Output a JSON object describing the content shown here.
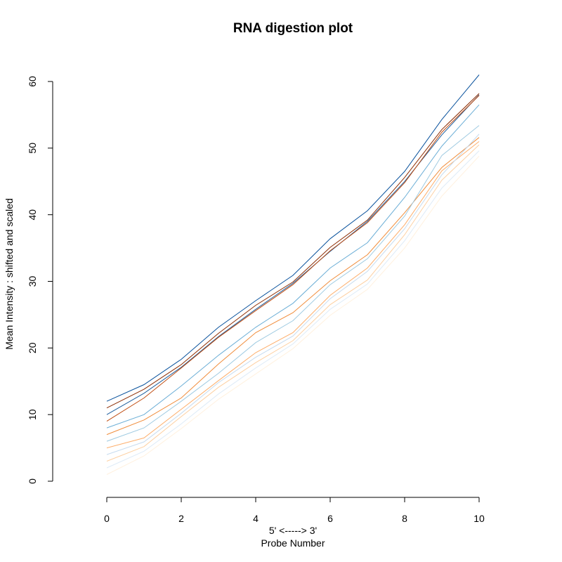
{
  "chart_data": {
    "type": "line",
    "title": "RNA digestion plot",
    "xlabel": "5' <-----> 3'",
    "xlabel2": "Probe Number",
    "ylabel": "Mean Intensity : shifted and scaled",
    "xlim": [
      0,
      10
    ],
    "ylim": [
      0,
      60
    ],
    "x_ticks": [
      0,
      2,
      4,
      6,
      8,
      10
    ],
    "y_ticks": [
      0,
      10,
      20,
      30,
      40,
      50,
      60
    ],
    "grid": false,
    "legend": "none",
    "x": [
      0,
      1,
      2,
      3,
      4,
      5,
      6,
      7,
      8,
      9,
      10
    ],
    "series": [
      {
        "color": "#08519c",
        "values": [
          12,
          14.5,
          18.3,
          23.1,
          27.1,
          30.9,
          36.4,
          40.6,
          46.5,
          54.3,
          61.0
        ]
      },
      {
        "color": "#8c2d04",
        "values": [
          11,
          13.8,
          17.5,
          22.2,
          26.4,
          29.9,
          35.1,
          39.2,
          45.6,
          52.8,
          58.2
        ]
      },
      {
        "color": "#1f5f9e",
        "values": [
          10,
          13.2,
          17.1,
          21.7,
          25.8,
          29.7,
          34.5,
          39.0,
          45.0,
          52.0,
          58.0
        ]
      },
      {
        "color": "#c04d12",
        "values": [
          9,
          12.5,
          17.0,
          21.6,
          25.6,
          29.5,
          34.6,
          38.8,
          44.8,
          52.4,
          57.9
        ]
      },
      {
        "color": "#6baed6",
        "values": [
          8,
          10.0,
          14.3,
          18.9,
          23.1,
          26.7,
          32.0,
          35.8,
          42.6,
          50.3,
          56.5
        ]
      },
      {
        "color": "#f08c3a",
        "values": [
          7,
          9.2,
          12.5,
          17.6,
          22.3,
          25.3,
          30.1,
          34.0,
          40.3,
          47.1,
          51.6
        ]
      },
      {
        "color": "#9ecae1",
        "values": [
          6,
          8.0,
          12.0,
          16.2,
          20.8,
          24.1,
          29.5,
          33.4,
          39.8,
          48.9,
          53.4
        ]
      },
      {
        "color": "#fdae6b",
        "values": [
          5,
          6.5,
          10.8,
          15.1,
          19.3,
          22.3,
          27.9,
          32.0,
          38.5,
          46.6,
          51.0
        ]
      },
      {
        "color": "#c6dbef",
        "values": [
          4,
          5.9,
          10.2,
          14.8,
          18.6,
          21.8,
          27.4,
          31.5,
          37.9,
          46.0,
          52.1
        ]
      },
      {
        "color": "#fdd0a2",
        "values": [
          3,
          5.2,
          9.7,
          14.1,
          17.8,
          21.1,
          26.5,
          30.2,
          37.0,
          45.2,
          50.5
        ]
      },
      {
        "color": "#deebf7",
        "values": [
          2,
          4.5,
          8.6,
          13.1,
          17.0,
          20.6,
          25.8,
          29.6,
          36.1,
          44.0,
          49.6
        ]
      },
      {
        "color": "#fff1df",
        "values": [
          1,
          3.8,
          7.9,
          12.3,
          16.1,
          19.9,
          24.9,
          28.8,
          35.0,
          42.8,
          48.8
        ]
      }
    ]
  }
}
